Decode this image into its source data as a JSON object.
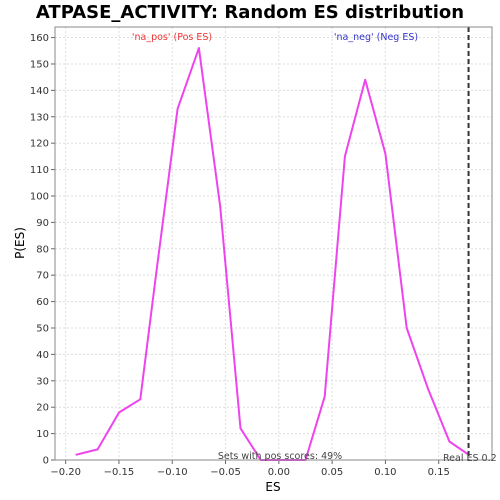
{
  "chart_data": {
    "type": "line",
    "title": "ATPASE_ACTIVITY: Random ES distribution",
    "xlabel": "ES",
    "ylabel": "P(ES)",
    "xlim": [
      -0.21,
      0.2
    ],
    "ylim": [
      0,
      164
    ],
    "xticks": [
      -0.2,
      -0.15,
      -0.1,
      -0.05,
      0.0,
      0.05,
      0.1,
      0.15
    ],
    "xtick_labels": [
      "−0.20",
      "−0.15",
      "−0.10",
      "−0.05",
      "0.00",
      "0.05",
      "0.10",
      "0.15"
    ],
    "yticks": [
      0,
      10,
      20,
      30,
      40,
      50,
      60,
      70,
      80,
      90,
      100,
      110,
      120,
      130,
      140,
      150,
      160
    ],
    "grid": true,
    "series": [
      {
        "color": "#ee44ee",
        "x": [
          -0.19,
          -0.17,
          -0.15,
          -0.13,
          -0.115,
          -0.095,
          -0.075,
          -0.055,
          -0.036,
          -0.017,
          0.0,
          0.025,
          0.043,
          0.062,
          0.081,
          0.1,
          0.12,
          0.14,
          0.16,
          0.178
        ],
        "y": [
          2,
          4,
          18,
          23,
          71,
          133,
          156,
          96,
          12,
          0,
          0,
          0,
          24,
          115,
          144,
          116,
          50,
          27,
          7,
          2
        ]
      }
    ],
    "vline": {
      "x": 0.178,
      "style": "dashed",
      "color": "#333333"
    },
    "annotations": {
      "pos_label": "'na_pos' (Pos ES)",
      "neg_label": "'na_neg' (Neg ES)",
      "pos_label_color": "#ee3333",
      "neg_label_color": "#3333cc",
      "sets_text": "Sets with pos scores: 49%",
      "real_es_text": "Real ES 0.2"
    }
  }
}
